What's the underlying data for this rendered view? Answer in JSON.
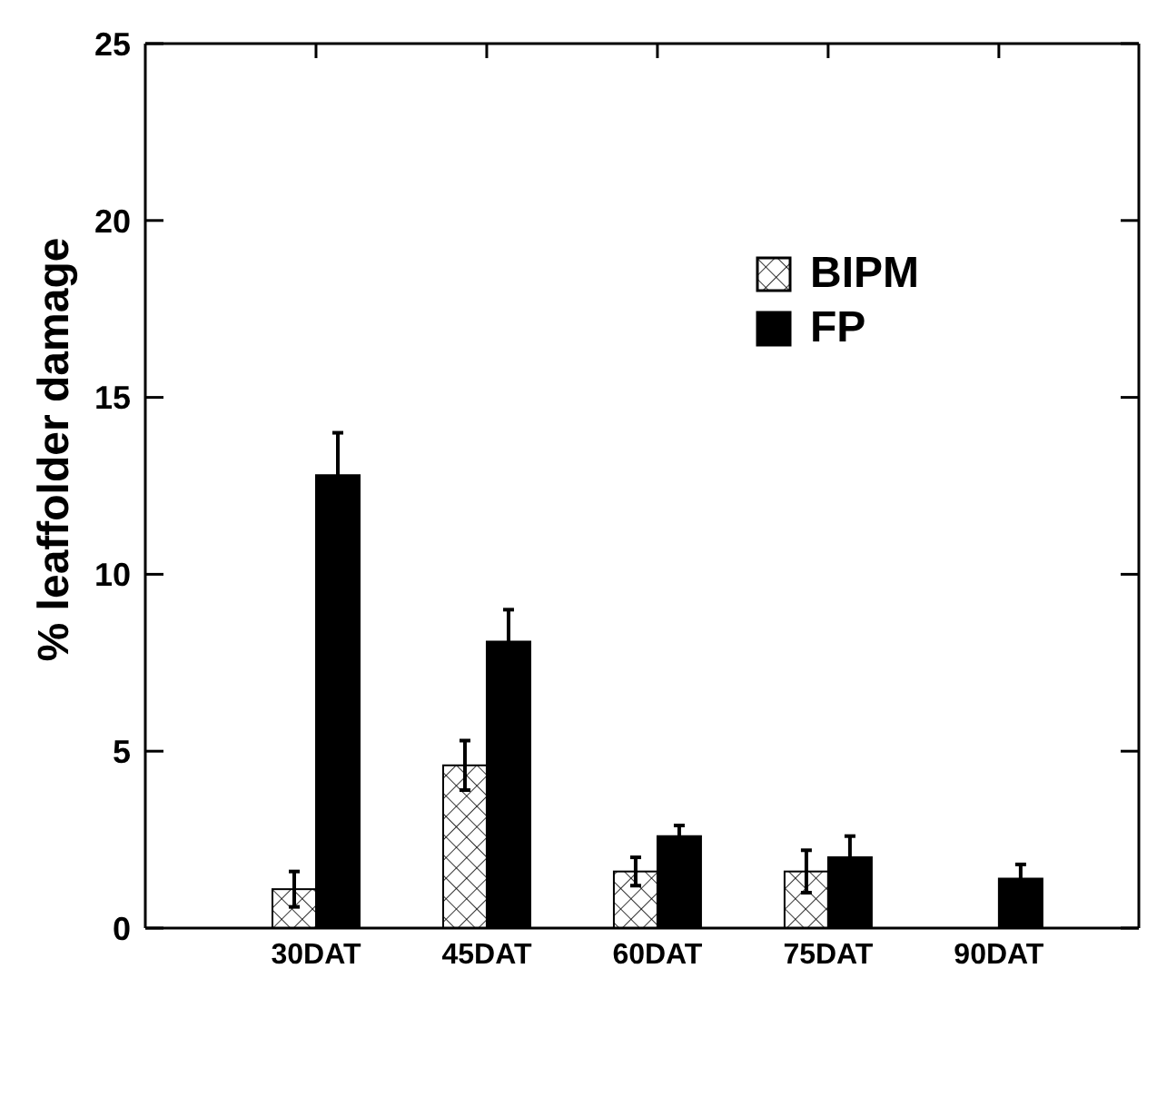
{
  "chart_data": {
    "type": "bar",
    "ylabel": "% leaffolder damage",
    "categories": [
      "30DAT",
      "45DAT",
      "60DAT",
      "75DAT",
      "90DAT"
    ],
    "series": [
      {
        "name": "BIPM",
        "color": "#ffffff",
        "values": [
          1.1,
          4.6,
          1.6,
          1.6,
          0
        ],
        "errors": [
          0.5,
          0.7,
          0.4,
          0.6,
          null
        ]
      },
      {
        "name": "FP",
        "color": "#000000",
        "values": [
          12.8,
          8.1,
          2.6,
          2.0,
          1.4
        ],
        "errors": [
          1.2,
          0.9,
          0.3,
          0.6,
          0.4
        ]
      }
    ],
    "ylim": [
      0,
      25
    ],
    "yticks": [
      0,
      5,
      10,
      15,
      20,
      25
    ],
    "legend": "top right"
  }
}
